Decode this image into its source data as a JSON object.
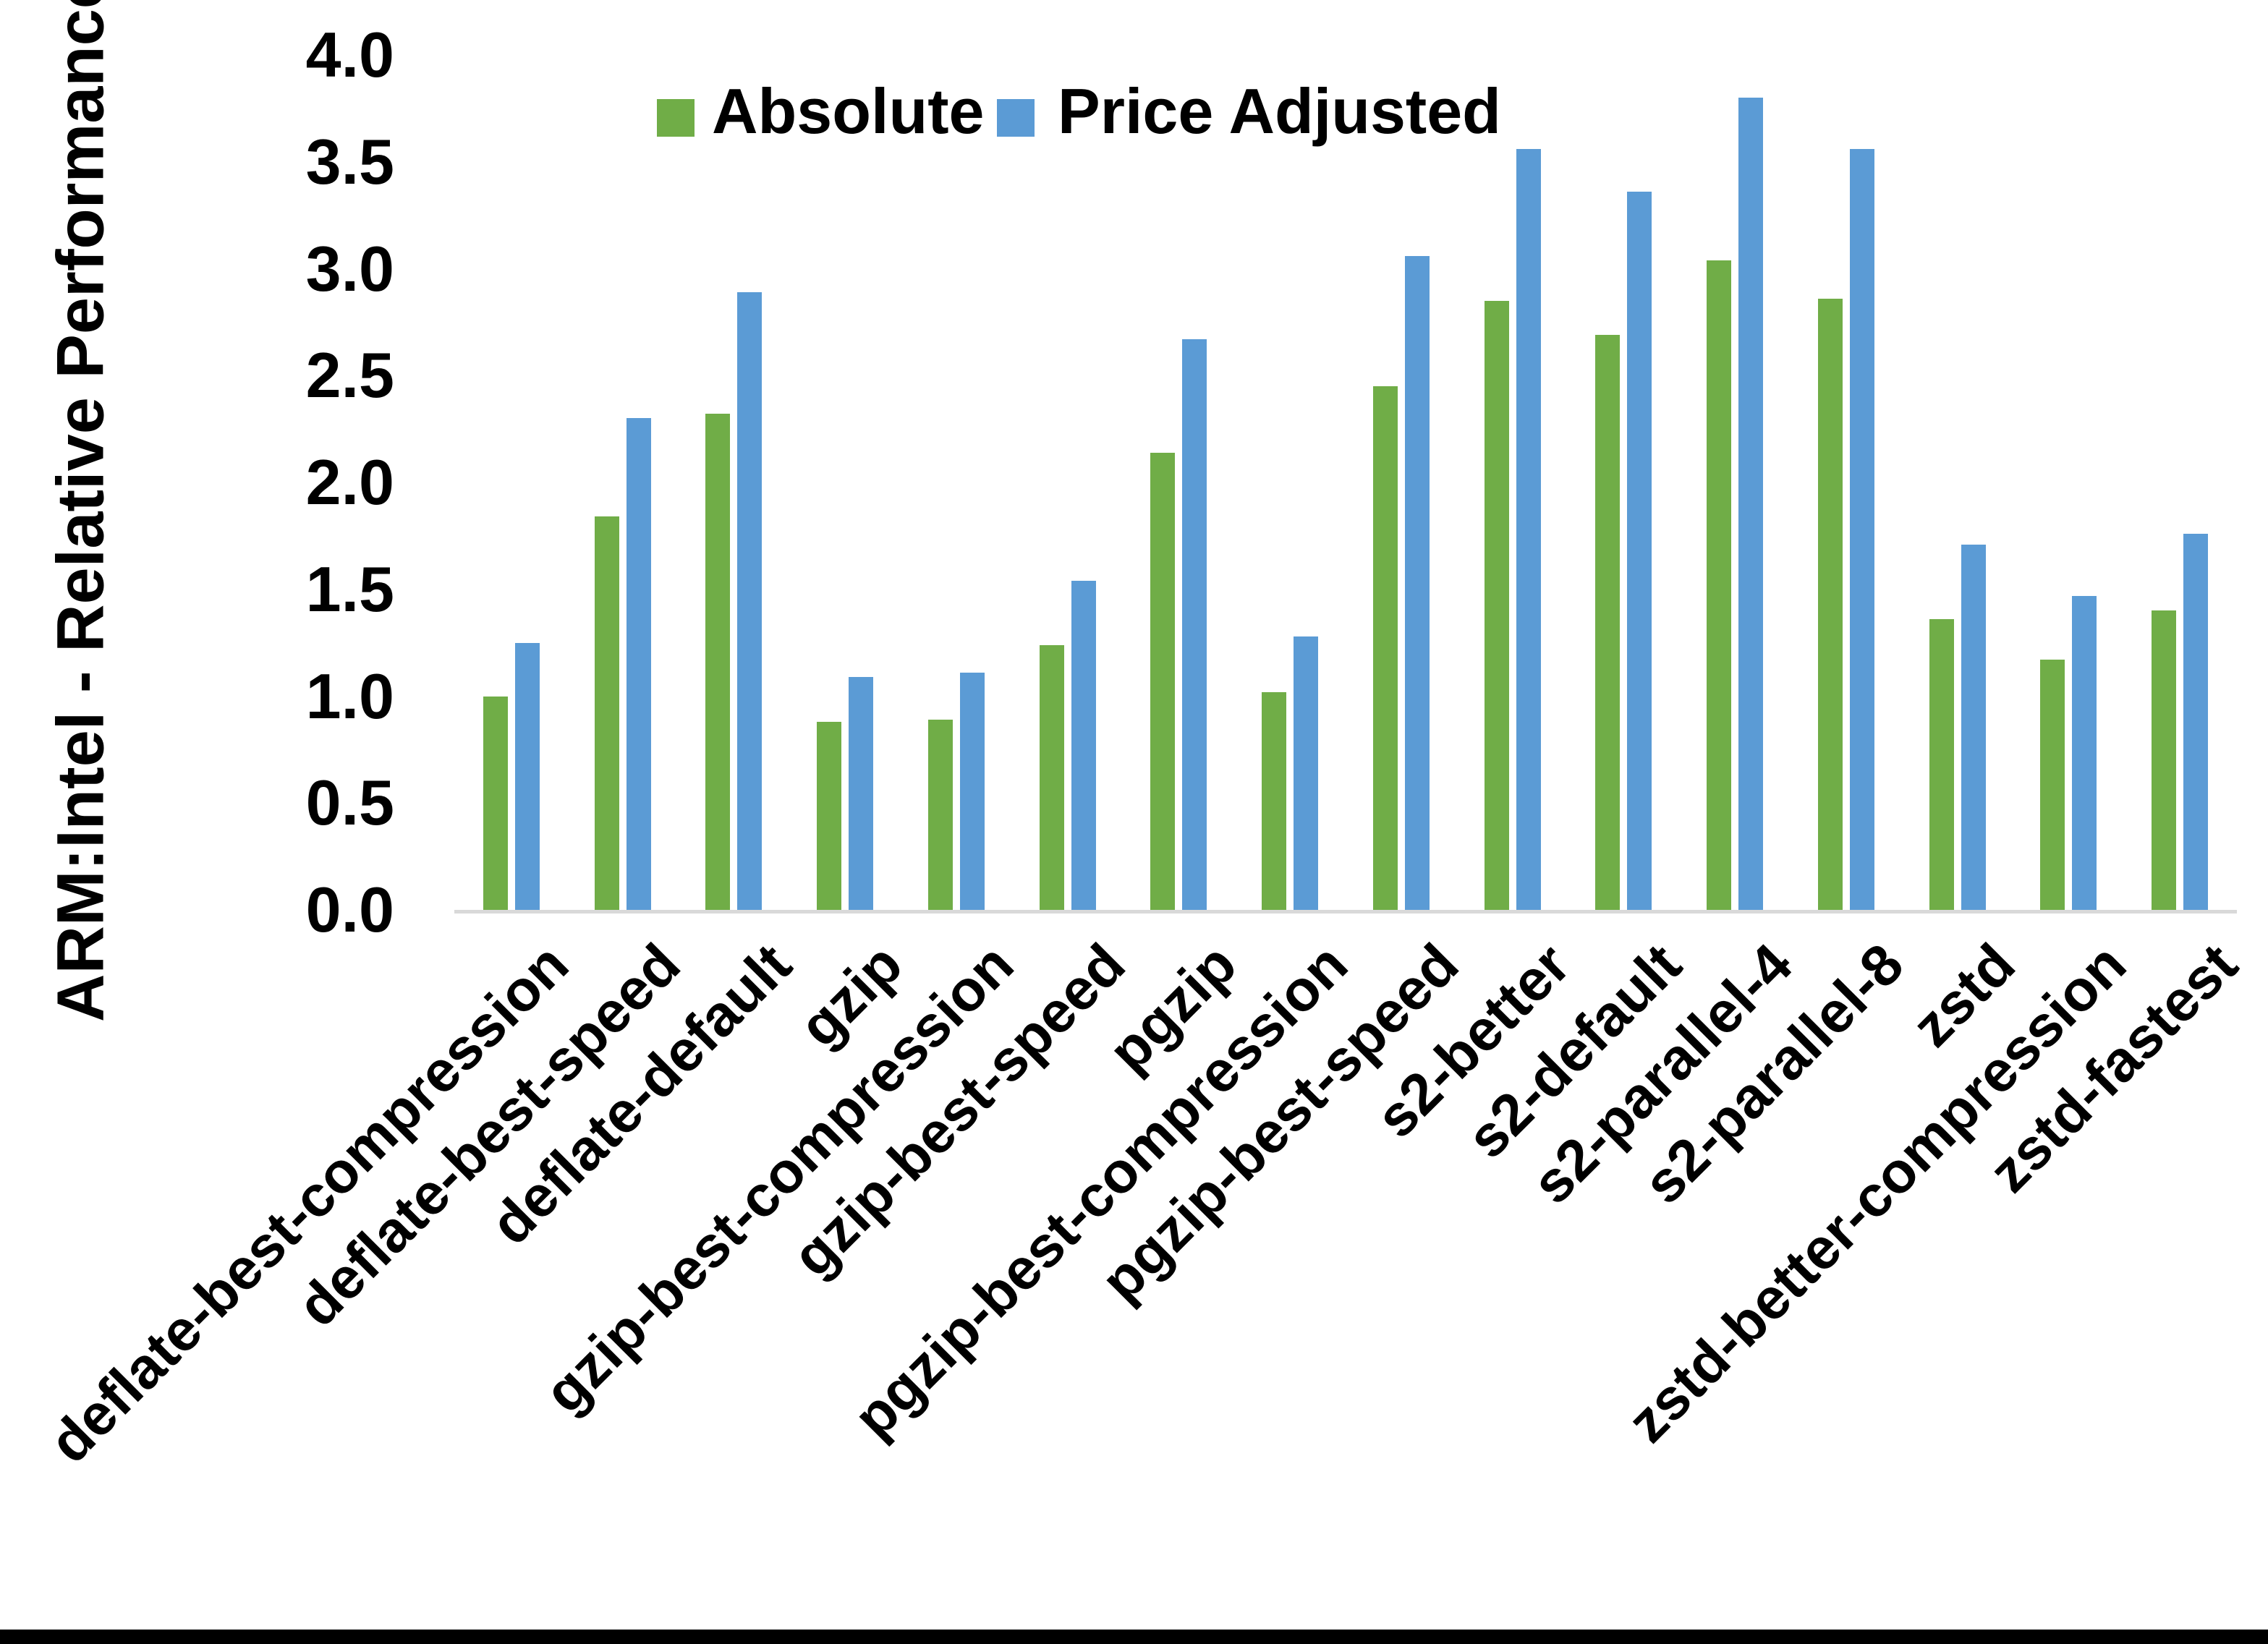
{
  "chart_data": {
    "type": "bar",
    "title": "",
    "xlabel": "",
    "ylabel": "ARM:Intel - Relative Performance",
    "ylim": [
      0.0,
      4.0
    ],
    "ytick_step": 0.5,
    "yticks": [
      "0.0",
      "0.5",
      "1.0",
      "1.5",
      "2.0",
      "2.5",
      "3.0",
      "3.5",
      "4.0"
    ],
    "grid": false,
    "legend_position": "top",
    "categories": [
      "deflate-best-compression",
      "deflate-best-speed",
      "deflate-default",
      "gzip",
      "gzip-best-compression",
      "gzip-best-speed",
      "pgzip",
      "pgzip-best-compression",
      "pgzip-best-speed",
      "s2-better",
      "s2-default",
      "s2-parallel-4",
      "s2-parallel-8",
      "zstd",
      "zstd-better-compression",
      "zstd-fastest"
    ],
    "series": [
      {
        "name": "Absolute",
        "color": "#70AD47",
        "values": [
          1.0,
          1.84,
          2.32,
          0.88,
          0.89,
          1.24,
          2.14,
          1.02,
          2.45,
          2.85,
          2.69,
          3.04,
          2.86,
          1.36,
          1.17,
          1.4
        ]
      },
      {
        "name": "Price Adjusted",
        "color": "#5B9BD5",
        "values": [
          1.25,
          2.3,
          2.89,
          1.09,
          1.11,
          1.54,
          2.67,
          1.28,
          3.06,
          3.56,
          3.36,
          3.8,
          3.56,
          1.71,
          1.47,
          1.76
        ]
      }
    ]
  },
  "colors": {
    "background": "#FFFFFF",
    "axis_line": "#D9D9D9",
    "text": "#000000",
    "bottom_border": "#000000"
  }
}
